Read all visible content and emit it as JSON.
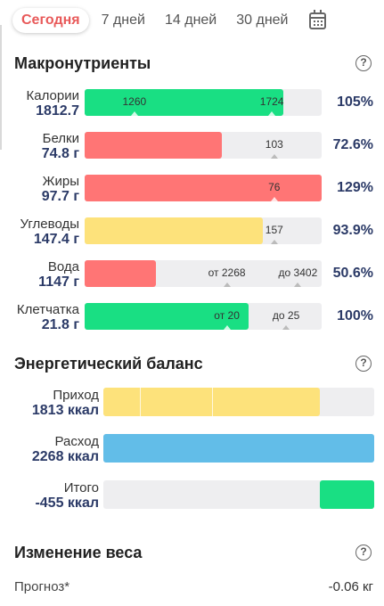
{
  "tabs": [
    "Сегодня",
    "7 дней",
    "14 дней",
    "30 дней"
  ],
  "macros": {
    "title": "Макронутриенты",
    "rows": [
      {
        "name": "Калории",
        "value": "1812.7",
        "percent": "105%",
        "fill_fraction": 0.84,
        "color": "#19df83",
        "marks": [
          {
            "text": "1260",
            "at": 0.21,
            "tick": true
          },
          {
            "text": "1724",
            "at": 0.79,
            "tick": true
          }
        ]
      },
      {
        "name": "Белки",
        "value": "74.8 г",
        "percent": "72.6%",
        "fill_fraction": 0.58,
        "color": "#ff7575",
        "marks": [
          {
            "text": "103",
            "at": 0.8,
            "tick": true
          }
        ]
      },
      {
        "name": "Жиры",
        "value": "97.7 г",
        "percent": "129%",
        "fill_fraction": 1.0,
        "color": "#ff7575",
        "marks": [
          {
            "text": "76",
            "at": 0.8,
            "tick": true
          }
        ]
      },
      {
        "name": "Углеводы",
        "value": "147.4 г",
        "percent": "93.9%",
        "fill_fraction": 0.75,
        "color": "#fde27b",
        "marks": [
          {
            "text": "157",
            "at": 0.8,
            "tick": true
          }
        ]
      },
      {
        "name": "Вода",
        "value": "1147 г",
        "percent": "50.6%",
        "fill_fraction": 0.3,
        "color": "#ff7575",
        "marks": [
          {
            "text": "от 2268",
            "at": 0.6,
            "tick": true
          },
          {
            "text": "до 3402",
            "at": 0.9,
            "tick": true
          }
        ]
      },
      {
        "name": "Клетчатка",
        "value": "21.8 г",
        "percent": "100%",
        "fill_fraction": 0.69,
        "color": "#19df83",
        "marks": [
          {
            "text": "от 20",
            "at": 0.6,
            "tick": true
          },
          {
            "text": "до 25",
            "at": 0.85,
            "tick": true
          }
        ]
      }
    ]
  },
  "energy": {
    "title": "Энергетический баланс",
    "rows": [
      {
        "name": "Приход",
        "value": "1813 ккал",
        "color": "#fde27b",
        "start_fraction": 0.0,
        "fill_fraction": 0.8,
        "dividers": [
          0.135,
          0.4
        ]
      },
      {
        "name": "Расход",
        "value": "2268 ккал",
        "color": "#62bde8",
        "start_fraction": 0.0,
        "fill_fraction": 1.0,
        "dividers": []
      },
      {
        "name": "Итого",
        "value": "-455 ккал",
        "color": "#19df83",
        "start_fraction": 0.8,
        "fill_fraction": 0.2,
        "dividers": []
      }
    ]
  },
  "weight": {
    "title": "Изменение веса",
    "forecast_label": "Прогноз*",
    "forecast_value": "-0.06 кг"
  },
  "icons": {
    "calendar": "calendar-icon",
    "help": "help-icon"
  }
}
